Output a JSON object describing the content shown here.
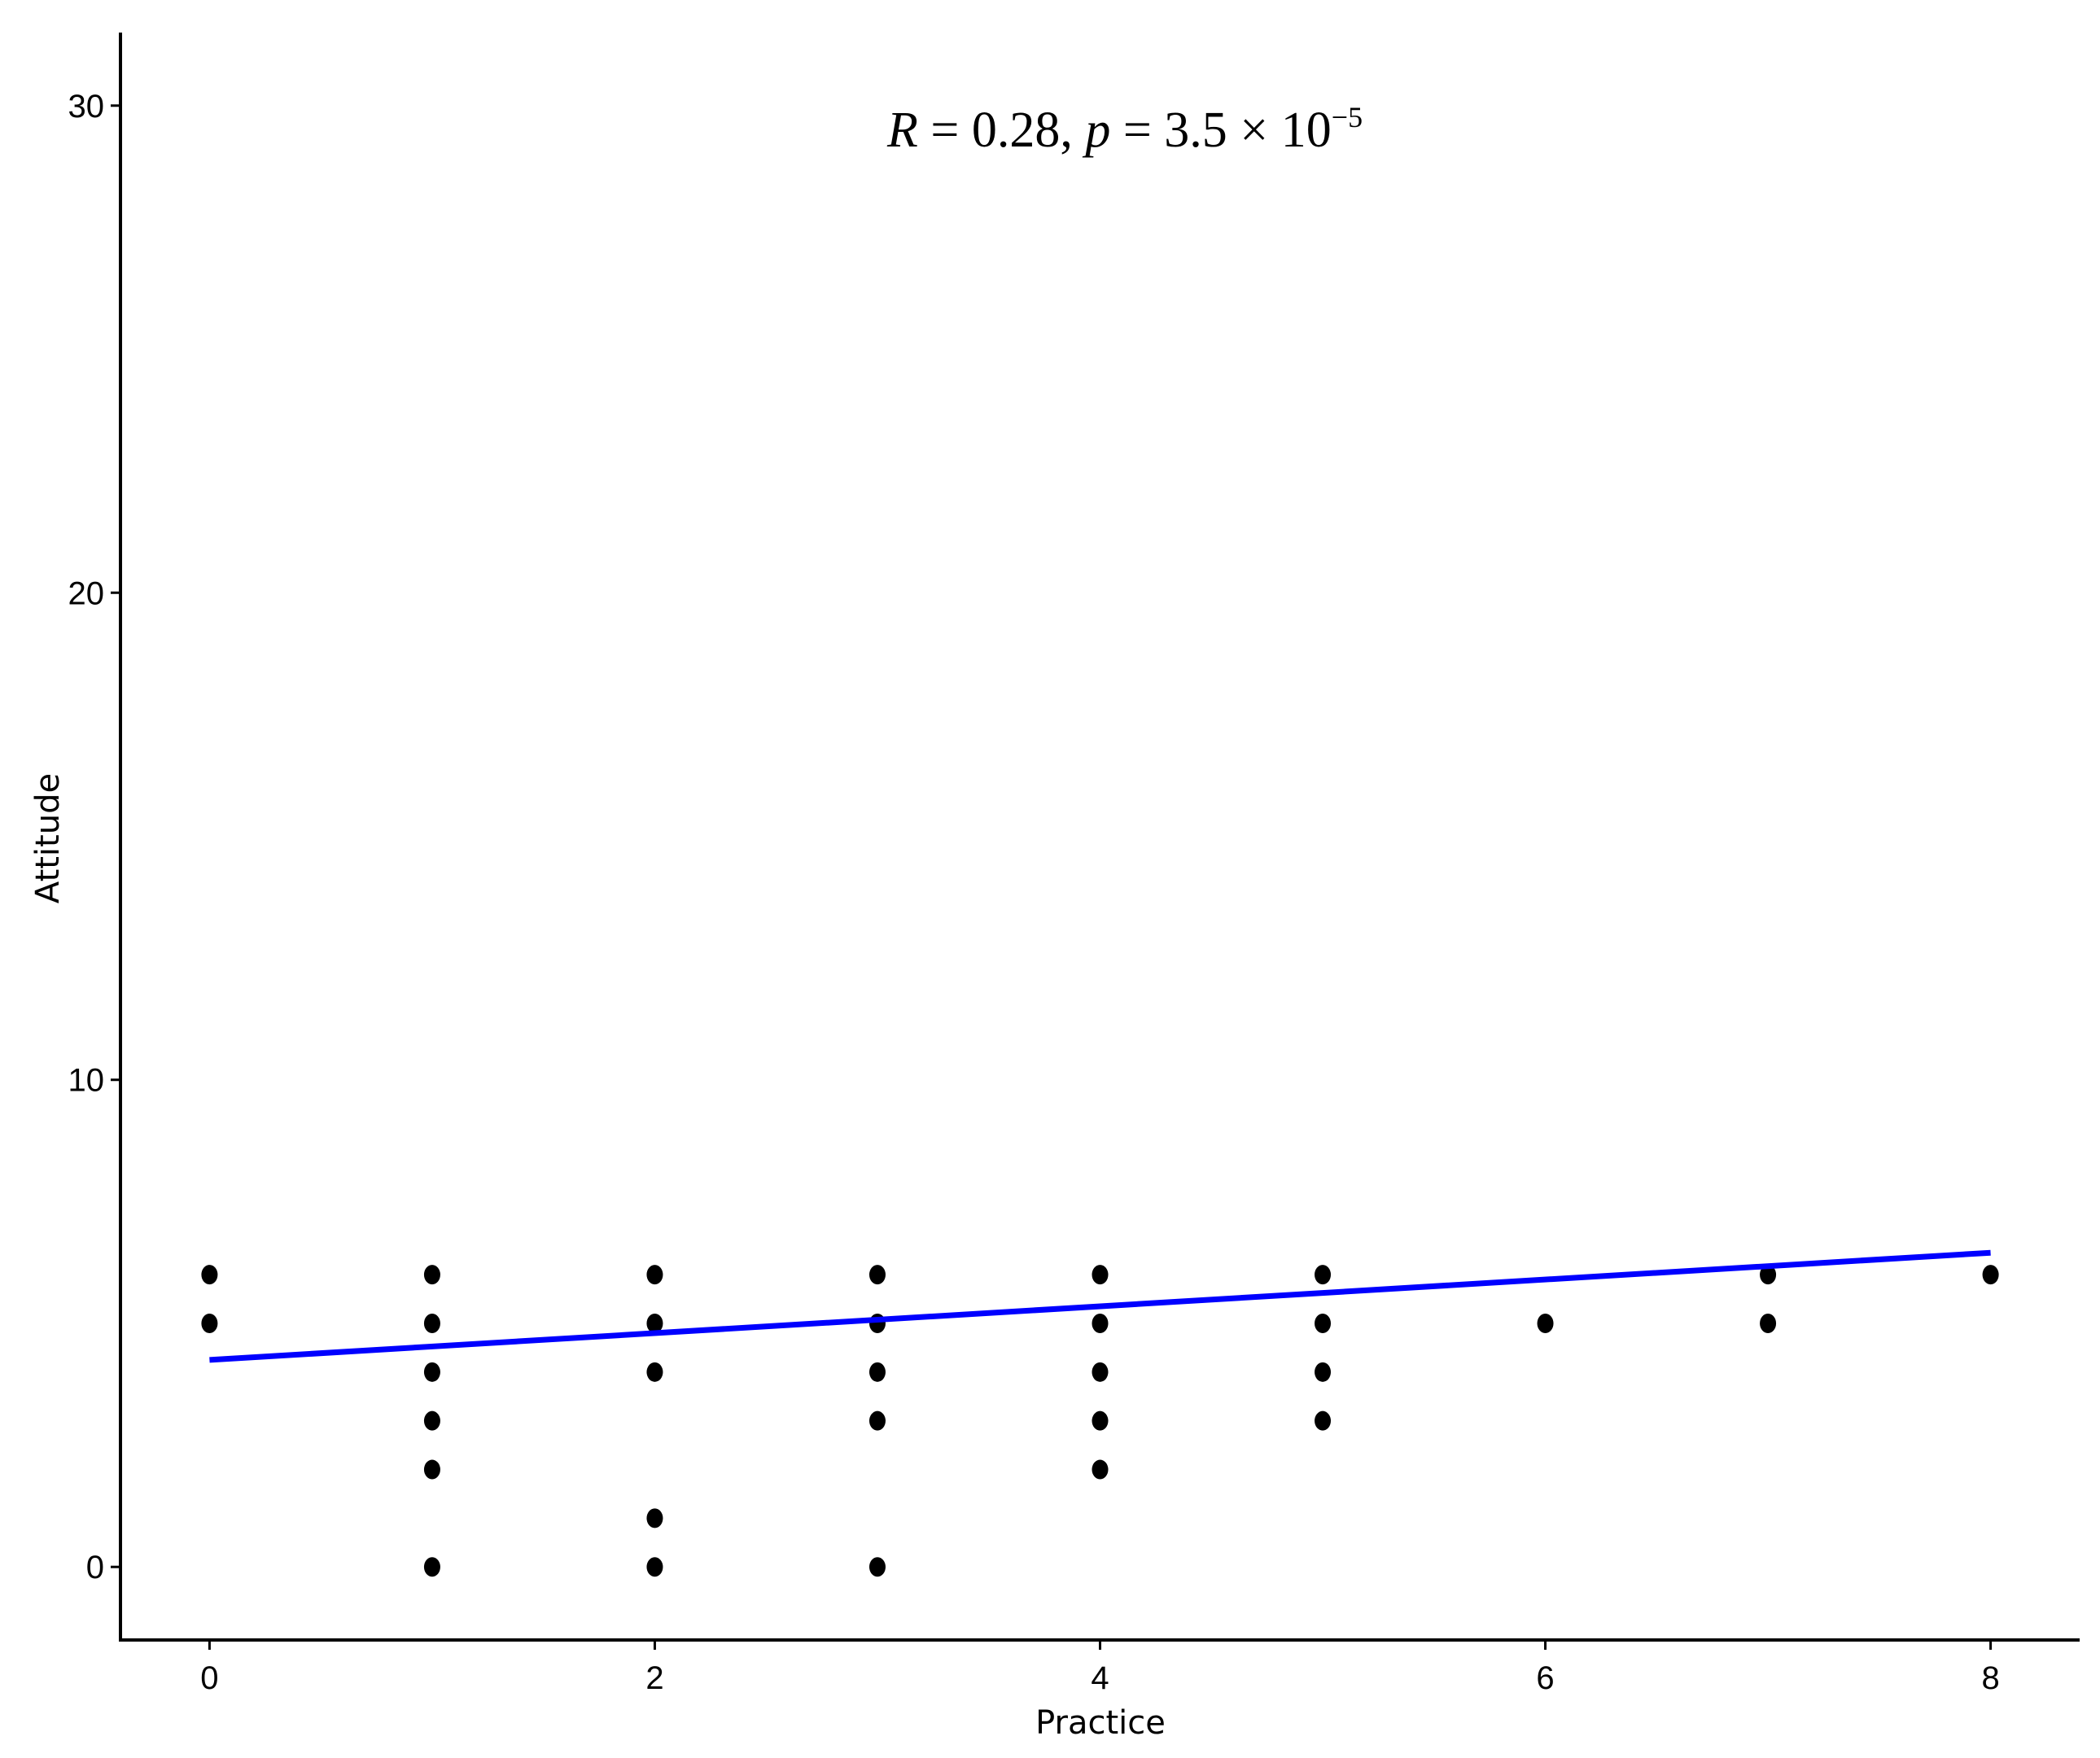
{
  "chart_data": {
    "type": "scatter",
    "title": "",
    "xlabel": "Practice",
    "ylabel": "Attitude",
    "xlim": [
      -0.4,
      8.4
    ],
    "ylim": [
      -1.5,
      31.5
    ],
    "xticks": [
      "0",
      "2",
      "4",
      "6",
      "8"
    ],
    "yticks": [
      "0",
      "10",
      "20",
      "30"
    ],
    "grid": false,
    "legend": "none",
    "annotation": {
      "r_label": "R",
      "r_text": " = 0.28, ",
      "p_label": "p",
      "p_text": " = 3.5 × 10",
      "p_exp": "−5"
    },
    "points": [
      {
        "x": 0,
        "y": 6
      },
      {
        "x": 0,
        "y": 5
      },
      {
        "x": 1,
        "y": 6
      },
      {
        "x": 1,
        "y": 5
      },
      {
        "x": 1,
        "y": 4
      },
      {
        "x": 1,
        "y": 3
      },
      {
        "x": 1,
        "y": 2
      },
      {
        "x": 1,
        "y": 0
      },
      {
        "x": 2,
        "y": 6
      },
      {
        "x": 2,
        "y": 5
      },
      {
        "x": 2,
        "y": 4
      },
      {
        "x": 2,
        "y": 1
      },
      {
        "x": 2,
        "y": 0
      },
      {
        "x": 3,
        "y": 6
      },
      {
        "x": 3,
        "y": 5
      },
      {
        "x": 3,
        "y": 4
      },
      {
        "x": 3,
        "y": 3
      },
      {
        "x": 3,
        "y": 0
      },
      {
        "x": 4,
        "y": 6
      },
      {
        "x": 4,
        "y": 5
      },
      {
        "x": 4,
        "y": 4
      },
      {
        "x": 4,
        "y": 3
      },
      {
        "x": 4,
        "y": 2
      },
      {
        "x": 5,
        "y": 6
      },
      {
        "x": 5,
        "y": 5
      },
      {
        "x": 5,
        "y": 4
      },
      {
        "x": 5,
        "y": 3
      },
      {
        "x": 6,
        "y": 5
      },
      {
        "x": 7,
        "y": 6
      },
      {
        "x": 7,
        "y": 5
      },
      {
        "x": 8,
        "y": 6
      }
    ],
    "fit_line": {
      "x": [
        0,
        8
      ],
      "y": [
        4.25,
        6.45
      ],
      "color": "#0000ff"
    },
    "point_color": "#000000"
  }
}
